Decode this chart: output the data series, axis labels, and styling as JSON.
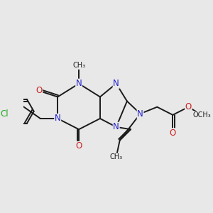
{
  "bg_color": "#e8e8e8",
  "bond_color": "#1a1a1a",
  "N_color": "#2222cc",
  "O_color": "#cc2222",
  "Cl_color": "#22aa22",
  "line_width": 1.4,
  "font_size": 8.5,
  "figsize": [
    3.0,
    3.0
  ],
  "dpi": 100,
  "xlim": [
    -1.0,
    6.5
  ],
  "ylim": [
    -2.2,
    3.0
  ]
}
